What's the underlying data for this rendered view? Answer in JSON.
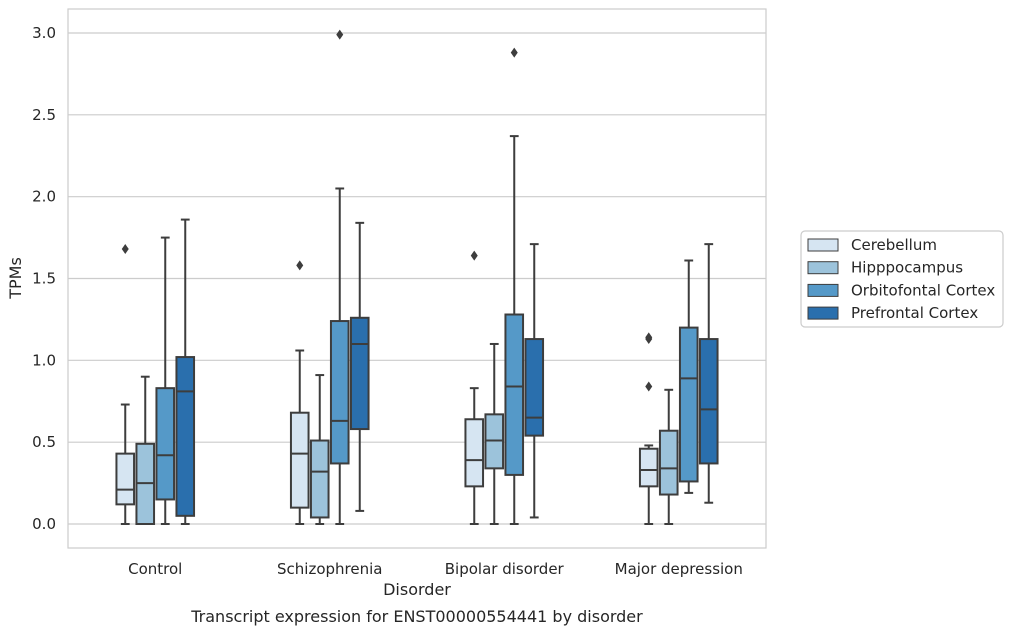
{
  "chart_data": {
    "type": "box",
    "title": "",
    "caption": "Transcript expression for ENST00000554441 by disorder",
    "xlabel": "Disorder",
    "ylabel": "TPMs",
    "ylim": [
      -0.14,
      3.15
    ],
    "yticks": [
      "0.0",
      "0.5",
      "1.0",
      "1.5",
      "2.0",
      "2.5",
      "3.0"
    ],
    "grid": "horizontal",
    "legend_position": "right",
    "categories": [
      "Control",
      "Schizophrenia",
      "Bipolar disorder",
      "Major depression"
    ],
    "series": [
      {
        "name": "Cerebellum",
        "color": "#d6e5f2",
        "boxes": [
          {
            "whisker_low": 0.0,
            "q1": 0.12,
            "median": 0.21,
            "q3": 0.43,
            "whisker_high": 0.73,
            "outliers": [
              1.68
            ]
          },
          {
            "whisker_low": 0.0,
            "q1": 0.1,
            "median": 0.43,
            "q3": 0.68,
            "whisker_high": 1.06,
            "outliers": [
              1.58
            ]
          },
          {
            "whisker_low": 0.0,
            "q1": 0.23,
            "median": 0.39,
            "q3": 0.64,
            "whisker_high": 0.83,
            "outliers": [
              1.64
            ]
          },
          {
            "whisker_low": 0.0,
            "q1": 0.23,
            "median": 0.33,
            "q3": 0.46,
            "whisker_high": 0.48,
            "outliers": [
              0.84,
              1.13,
              1.14
            ]
          }
        ]
      },
      {
        "name": "Hipppocampus",
        "color": "#9cc3db",
        "boxes": [
          {
            "whisker_low": 0.0,
            "q1": 0.0,
            "median": 0.25,
            "q3": 0.49,
            "whisker_high": 0.9,
            "outliers": []
          },
          {
            "whisker_low": 0.0,
            "q1": 0.04,
            "median": 0.32,
            "q3": 0.51,
            "whisker_high": 0.91,
            "outliers": []
          },
          {
            "whisker_low": 0.0,
            "q1": 0.34,
            "median": 0.51,
            "q3": 0.67,
            "whisker_high": 1.1,
            "outliers": []
          },
          {
            "whisker_low": 0.0,
            "q1": 0.18,
            "median": 0.34,
            "q3": 0.57,
            "whisker_high": 0.82,
            "outliers": []
          }
        ]
      },
      {
        "name": "Orbitofontal Cortex",
        "color": "#5599c8",
        "boxes": [
          {
            "whisker_low": 0.0,
            "q1": 0.15,
            "median": 0.42,
            "q3": 0.83,
            "whisker_high": 1.75,
            "outliers": []
          },
          {
            "whisker_low": 0.0,
            "q1": 0.37,
            "median": 0.63,
            "q3": 1.24,
            "whisker_high": 2.05,
            "outliers": [
              2.99
            ]
          },
          {
            "whisker_low": 0.0,
            "q1": 0.3,
            "median": 0.84,
            "q3": 1.28,
            "whisker_high": 2.37,
            "outliers": [
              2.88
            ]
          },
          {
            "whisker_low": 0.19,
            "q1": 0.26,
            "median": 0.89,
            "q3": 1.2,
            "whisker_high": 1.61,
            "outliers": []
          }
        ]
      },
      {
        "name": "Prefrontal Cortex",
        "color": "#2a6fad",
        "boxes": [
          {
            "whisker_low": 0.0,
            "q1": 0.05,
            "median": 0.81,
            "q3": 1.02,
            "whisker_high": 1.86,
            "outliers": []
          },
          {
            "whisker_low": 0.08,
            "q1": 0.58,
            "median": 1.1,
            "q3": 1.26,
            "whisker_high": 1.84,
            "outliers": []
          },
          {
            "whisker_low": 0.04,
            "q1": 0.54,
            "median": 0.65,
            "q3": 1.13,
            "whisker_high": 1.71,
            "outliers": []
          },
          {
            "whisker_low": 0.13,
            "q1": 0.37,
            "median": 0.7,
            "q3": 1.13,
            "whisker_high": 1.71,
            "outliers": []
          }
        ]
      }
    ]
  }
}
